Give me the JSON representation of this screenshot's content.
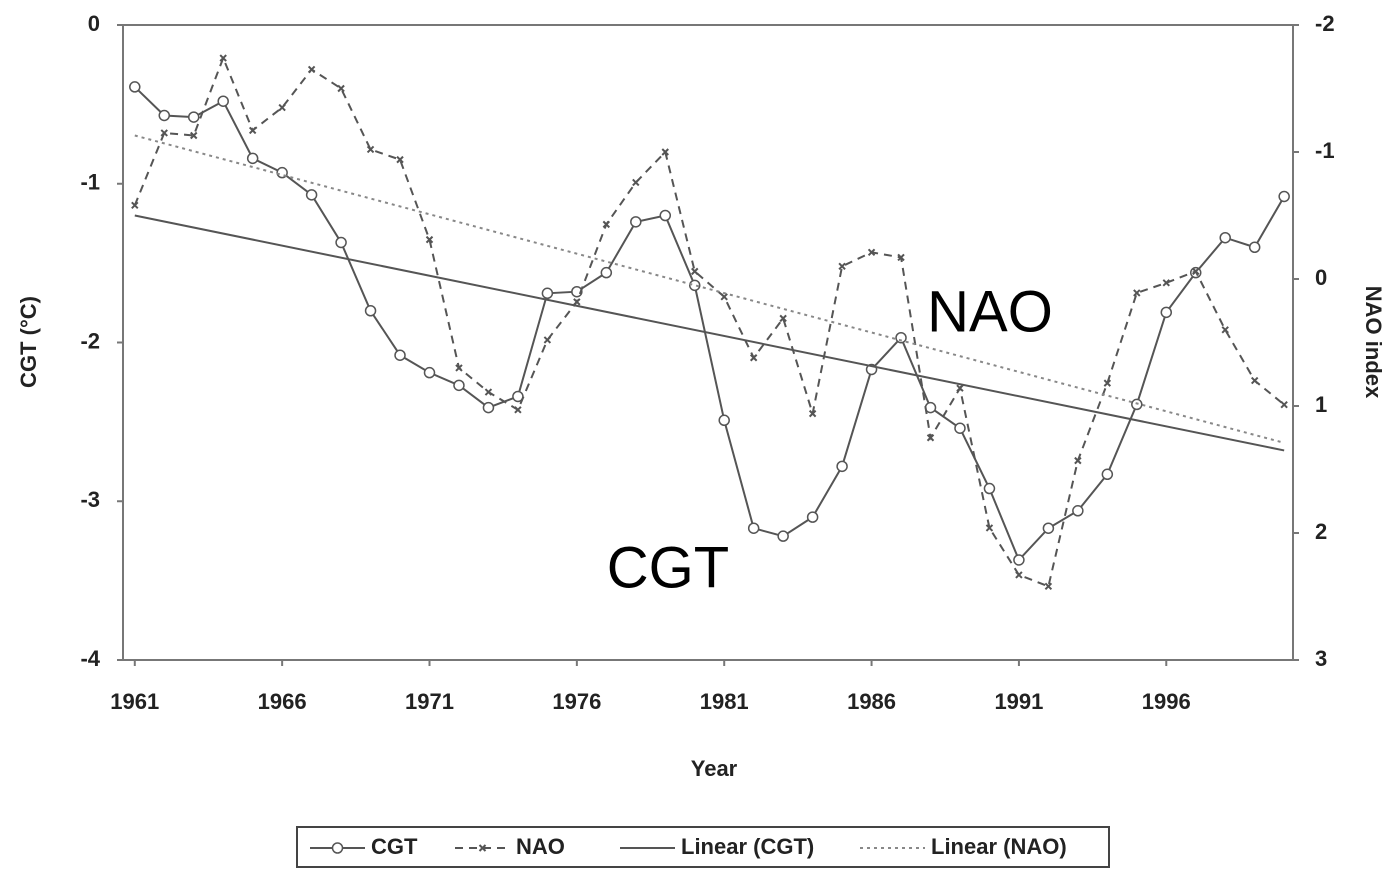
{
  "chart_data": {
    "type": "line",
    "x_label": "Year",
    "y_label": "CGT (°C)",
    "y2_label": "NAO index",
    "annotations": [
      "NAO",
      "CGT"
    ],
    "x": [
      1961,
      1962,
      1963,
      1964,
      1965,
      1966,
      1967,
      1968,
      1969,
      1970,
      1971,
      1972,
      1973,
      1974,
      1975,
      1976,
      1977,
      1978,
      1979,
      1980,
      1981,
      1982,
      1983,
      1984,
      1985,
      1986,
      1987,
      1988,
      1989,
      1990,
      1991,
      1992,
      1993,
      1994,
      1995,
      1996,
      1997,
      1998,
      1999,
      2000
    ],
    "xlim": [
      1960.6,
      2000.3
    ],
    "xticks": [
      1961,
      1966,
      1971,
      1976,
      1981,
      1986,
      1991,
      1996
    ],
    "ylim": [
      -4,
      0
    ],
    "yticks": [
      0,
      -1,
      -2,
      -3,
      -4
    ],
    "y2lim": [
      3,
      -2
    ],
    "y2ticks": [
      -2,
      -1,
      0,
      1,
      2,
      3
    ],
    "series": [
      {
        "name": "CGT",
        "color": "#555555",
        "dash": "solid",
        "marker": "circle",
        "values": [
          -0.39,
          -0.57,
          -0.58,
          -0.48,
          -0.84,
          -0.93,
          -1.07,
          -1.37,
          -1.8,
          -2.08,
          -2.19,
          -2.27,
          -2.41,
          -2.34,
          -1.69,
          -1.68,
          -1.56,
          -1.24,
          -1.2,
          -1.64,
          -2.49,
          -3.17,
          -3.22,
          -3.1,
          -2.78,
          -2.17,
          -1.97,
          -2.41,
          -2.54,
          -2.92,
          -3.37,
          -3.17,
          -3.06,
          -2.83,
          -2.39,
          -1.81,
          -1.56,
          -1.34,
          -1.4,
          -1.08
        ]
      },
      {
        "name": "NAO",
        "color": "#555555",
        "dash": "dashed",
        "marker": "x",
        "axis": "y2",
        "values": [
          -0.58,
          -1.15,
          -1.13,
          -1.74,
          -1.17,
          -1.35,
          -1.65,
          -1.5,
          -1.02,
          -0.94,
          -0.31,
          0.7,
          0.89,
          1.03,
          0.48,
          0.18,
          -0.43,
          -0.76,
          -1.0,
          -0.06,
          0.14,
          0.62,
          0.31,
          1.06,
          -0.1,
          -0.21,
          -0.17,
          1.25,
          0.86,
          1.96,
          2.33,
          2.42,
          1.43,
          0.82,
          0.11,
          0.03,
          -0.06,
          0.4,
          0.8,
          0.99
        ]
      },
      {
        "name": "Linear (CGT)",
        "color": "#555555",
        "dash": "solid",
        "marker": "none",
        "x": [
          1961,
          2000
        ],
        "values": [
          -1.2,
          -2.68
        ]
      },
      {
        "name": "Linear (NAO)",
        "color": "#888888",
        "dash": "dotted",
        "marker": "none",
        "axis": "y2",
        "x": [
          1961,
          2000
        ],
        "values": [
          -1.13,
          1.29
        ]
      }
    ]
  }
}
